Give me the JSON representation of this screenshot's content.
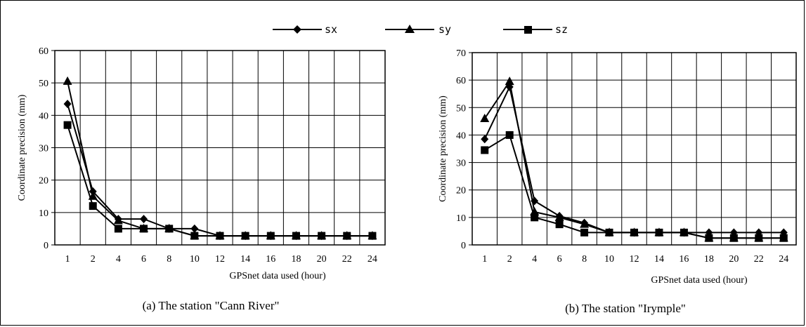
{
  "legend": [
    {
      "label": "sx",
      "marker": "diamond"
    },
    {
      "label": "sy",
      "marker": "triangle"
    },
    {
      "label": "sz",
      "marker": "square"
    }
  ],
  "chart_data": [
    {
      "type": "line",
      "caption": "(a) The station \"Cann River\"",
      "xlabel": "GPSnet data used (hour)",
      "ylabel": "Coordinate precision (mm)",
      "x": [
        "1",
        "2",
        "4",
        "6",
        "8",
        "10",
        "12",
        "14",
        "16",
        "18",
        "20",
        "22",
        "24"
      ],
      "ylim": [
        0,
        60
      ],
      "yticks": [
        0,
        10,
        20,
        30,
        40,
        50,
        60
      ],
      "grid": true,
      "series": [
        {
          "name": "sx",
          "marker": "diamond",
          "values": [
            43.5,
            16.5,
            8,
            8,
            5,
            5,
            2.8,
            2.8,
            2.8,
            2.8,
            2.8,
            2.8,
            2.8
          ]
        },
        {
          "name": "sy",
          "marker": "triangle",
          "values": [
            50.5,
            15,
            7.5,
            5,
            5,
            2.8,
            2.8,
            2.8,
            2.8,
            2.8,
            2.8,
            2.8,
            2.8
          ]
        },
        {
          "name": "sz",
          "marker": "square",
          "values": [
            37,
            12,
            5,
            5,
            5,
            2.8,
            2.8,
            2.8,
            2.8,
            2.8,
            2.8,
            2.8,
            2.8
          ]
        }
      ]
    },
    {
      "type": "line",
      "caption": "(b) The station \"Irymple\"",
      "xlabel": "GPSnet data used (hour)",
      "ylabel": "Coordinate precision (mm)",
      "x": [
        "1",
        "2",
        "4",
        "6",
        "8",
        "10",
        "12",
        "14",
        "16",
        "18",
        "20",
        "22",
        "24"
      ],
      "ylim": [
        0,
        70
      ],
      "yticks": [
        0,
        10,
        20,
        30,
        40,
        50,
        60,
        70
      ],
      "grid": true,
      "series": [
        {
          "name": "sx",
          "marker": "diamond",
          "values": [
            38.5,
            57.5,
            16,
            10.5,
            8,
            4.5,
            4.5,
            4.5,
            4.5,
            4.5,
            4.5,
            4.5,
            4.5
          ]
        },
        {
          "name": "sy",
          "marker": "triangle",
          "values": [
            46,
            59.5,
            12,
            10,
            7.5,
            4.5,
            4.5,
            4.5,
            4.5,
            2.5,
            2.5,
            2.5,
            2.5
          ]
        },
        {
          "name": "sz",
          "marker": "square",
          "values": [
            34.5,
            40,
            10,
            7.5,
            4.5,
            4.5,
            4.5,
            4.5,
            4.5,
            2.5,
            2.5,
            2.5,
            2.5
          ]
        }
      ]
    }
  ]
}
